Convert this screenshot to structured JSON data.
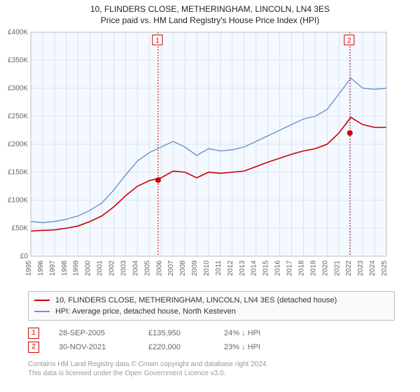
{
  "title": "10, FLINDERS CLOSE, METHERINGHAM, LINCOLN, LN4 3ES",
  "subtitle": "Price paid vs. HM Land Registry's House Price Index (HPI)",
  "chart": {
    "type": "line",
    "background_color": "#f4f8ff",
    "grid_color": "#d9e3f0",
    "axis_text_color": "#666666",
    "y": {
      "min": 0,
      "max": 400000,
      "step": 50000,
      "ticks": [
        "£0",
        "£50K",
        "£100K",
        "£150K",
        "£200K",
        "£250K",
        "£300K",
        "£350K",
        "£400K"
      ]
    },
    "x": {
      "min": 1995,
      "max": 2025,
      "step": 1,
      "ticks": [
        "1995",
        "1996",
        "1997",
        "1998",
        "1999",
        "2000",
        "2001",
        "2002",
        "2003",
        "2004",
        "2005",
        "2006",
        "2007",
        "2008",
        "2009",
        "2010",
        "2011",
        "2012",
        "2013",
        "2014",
        "2015",
        "2016",
        "2017",
        "2018",
        "2019",
        "2020",
        "2021",
        "2022",
        "2023",
        "2024",
        "2025"
      ]
    },
    "series": [
      {
        "id": "price_paid",
        "label": "10, FLINDERS CLOSE, METHERINGHAM, LINCOLN, LN4 3ES (detached house)",
        "color": "#cc0000",
        "width": 1.6,
        "data": [
          [
            1995,
            45000
          ],
          [
            1996,
            46000
          ],
          [
            1997,
            47000
          ],
          [
            1998,
            50000
          ],
          [
            1999,
            54000
          ],
          [
            2000,
            62000
          ],
          [
            2001,
            72000
          ],
          [
            2002,
            88000
          ],
          [
            2003,
            108000
          ],
          [
            2004,
            125000
          ],
          [
            2005,
            135000
          ],
          [
            2006,
            140000
          ],
          [
            2007,
            152000
          ],
          [
            2008,
            150000
          ],
          [
            2009,
            140000
          ],
          [
            2010,
            150000
          ],
          [
            2011,
            148000
          ],
          [
            2012,
            150000
          ],
          [
            2013,
            152000
          ],
          [
            2014,
            160000
          ],
          [
            2015,
            168000
          ],
          [
            2016,
            175000
          ],
          [
            2017,
            182000
          ],
          [
            2018,
            188000
          ],
          [
            2019,
            192000
          ],
          [
            2020,
            200000
          ],
          [
            2021,
            220000
          ],
          [
            2022,
            248000
          ],
          [
            2023,
            235000
          ],
          [
            2024,
            230000
          ],
          [
            2025,
            230000
          ]
        ]
      },
      {
        "id": "hpi",
        "label": "HPI: Average price, detached house, North Kesteven",
        "color": "#6b93cc",
        "width": 1.4,
        "data": [
          [
            1995,
            62000
          ],
          [
            1996,
            60000
          ],
          [
            1997,
            62000
          ],
          [
            1998,
            66000
          ],
          [
            1999,
            72000
          ],
          [
            2000,
            82000
          ],
          [
            2001,
            95000
          ],
          [
            2002,
            118000
          ],
          [
            2003,
            145000
          ],
          [
            2004,
            170000
          ],
          [
            2005,
            185000
          ],
          [
            2006,
            195000
          ],
          [
            2007,
            205000
          ],
          [
            2008,
            195000
          ],
          [
            2009,
            180000
          ],
          [
            2010,
            192000
          ],
          [
            2011,
            188000
          ],
          [
            2012,
            190000
          ],
          [
            2013,
            195000
          ],
          [
            2014,
            205000
          ],
          [
            2015,
            215000
          ],
          [
            2016,
            225000
          ],
          [
            2017,
            235000
          ],
          [
            2018,
            245000
          ],
          [
            2019,
            250000
          ],
          [
            2020,
            262000
          ],
          [
            2021,
            290000
          ],
          [
            2022,
            318000
          ],
          [
            2023,
            300000
          ],
          [
            2024,
            298000
          ],
          [
            2025,
            300000
          ]
        ]
      }
    ],
    "vlines": [
      {
        "id": 1,
        "x": 2005.74,
        "color": "#cc0000",
        "label": "1"
      },
      {
        "id": 2,
        "x": 2021.92,
        "color": "#cc0000",
        "label": "2"
      }
    ],
    "sale_points": [
      {
        "x": 2005.74,
        "y": 135950,
        "color": "#cc0000"
      },
      {
        "x": 2021.92,
        "y": 220000,
        "color": "#cc0000"
      }
    ]
  },
  "legend": [
    {
      "color": "#cc0000",
      "label": "10, FLINDERS CLOSE, METHERINGHAM, LINCOLN, LN4 3ES (detached house)"
    },
    {
      "color": "#6b93cc",
      "label": "HPI: Average price, detached house, North Kesteven"
    }
  ],
  "sales": [
    {
      "num": "1",
      "date": "28-SEP-2005",
      "price": "£135,950",
      "delta": "24% ↓ HPI"
    },
    {
      "num": "2",
      "date": "30-NOV-2021",
      "price": "£220,000",
      "delta": "23% ↓ HPI"
    }
  ],
  "footer": {
    "line1": "Contains HM Land Registry data © Crown copyright and database right 2024.",
    "line2": "This data is licensed under the Open Government Licence v3.0."
  }
}
